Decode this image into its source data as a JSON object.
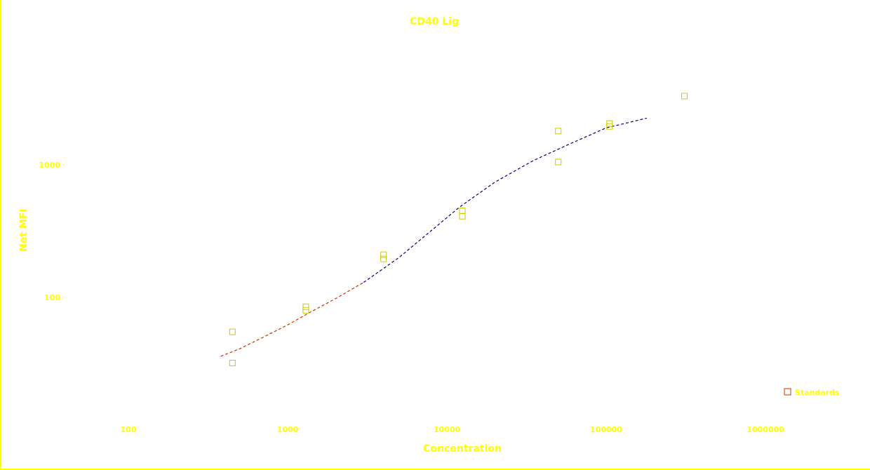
{
  "chart_data": {
    "type": "scatter",
    "title": "CD40 Lig",
    "xlabel": "Concentration",
    "ylabel": "Net MFI",
    "x_scale": "log",
    "y_scale": "log",
    "xlim": [
      40,
      1000000
    ],
    "ylim": [
      20,
      3000
    ],
    "x_ticks": [
      {
        "value": 100,
        "label": "100"
      },
      {
        "value": 1000,
        "label": "1000"
      },
      {
        "value": 10000,
        "label": "10000"
      },
      {
        "value": 100000,
        "label": "100000"
      },
      {
        "value": 1000000,
        "label": "1000000"
      }
    ],
    "y_ticks": [
      {
        "value": 100,
        "label": "100"
      },
      {
        "value": 1000,
        "label": "1000"
      }
    ],
    "grid": false,
    "legend": {
      "position": "bottom-right",
      "entries": [
        "Standards"
      ]
    },
    "series": [
      {
        "name": "Standards",
        "marker": "square",
        "points": [
          {
            "x": 450,
            "y": 55
          },
          {
            "x": 450,
            "y": 32
          },
          {
            "x": 1300,
            "y": 80
          },
          {
            "x": 1300,
            "y": 85
          },
          {
            "x": 4000,
            "y": 195
          },
          {
            "x": 4000,
            "y": 210
          },
          {
            "x": 12500,
            "y": 410
          },
          {
            "x": 12500,
            "y": 450
          },
          {
            "x": 50000,
            "y": 1800
          },
          {
            "x": 50000,
            "y": 1050
          },
          {
            "x": 105000,
            "y": 1950
          },
          {
            "x": 105000,
            "y": 2050
          },
          {
            "x": 310000,
            "y": 3300
          }
        ]
      }
    ],
    "fits": [
      {
        "style": "dashed",
        "color": "#cc3300",
        "points": [
          {
            "x": 380,
            "y": 36
          },
          {
            "x": 500,
            "y": 41
          },
          {
            "x": 700,
            "y": 50
          },
          {
            "x": 1000,
            "y": 62
          },
          {
            "x": 1400,
            "y": 78
          },
          {
            "x": 2000,
            "y": 98
          },
          {
            "x": 3000,
            "y": 130
          }
        ]
      },
      {
        "style": "dashed",
        "color": "#000080",
        "points": [
          {
            "x": 3000,
            "y": 130
          },
          {
            "x": 5000,
            "y": 200
          },
          {
            "x": 8000,
            "y": 320
          },
          {
            "x": 12000,
            "y": 480
          },
          {
            "x": 20000,
            "y": 740
          },
          {
            "x": 35000,
            "y": 1080
          },
          {
            "x": 60000,
            "y": 1450
          },
          {
            "x": 100000,
            "y": 1900
          },
          {
            "x": 180000,
            "y": 2250
          }
        ]
      }
    ]
  },
  "colors": {
    "text": "#ffff00",
    "marker": "#cccc00",
    "legend_marker": "#cc3300",
    "fit_low": "#cc3300",
    "fit_high": "#000080",
    "frame": "#ffff00"
  }
}
